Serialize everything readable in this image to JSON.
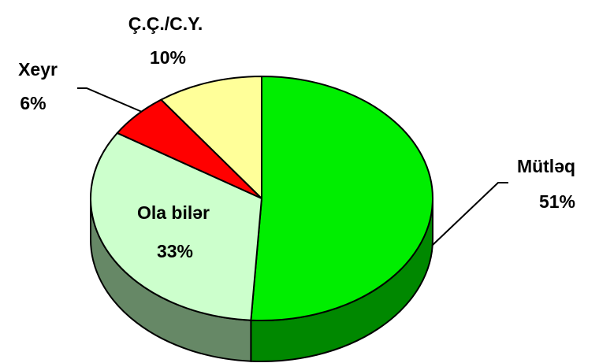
{
  "chart_data": {
    "type": "pie",
    "categories": [
      "Mütləq",
      "Ola bilər",
      "Xeyr",
      "Ç.Ç./C.Y."
    ],
    "values": [
      51,
      33,
      6,
      10
    ],
    "value_labels": [
      "51%",
      "33%",
      "6%",
      "10%"
    ],
    "colors": [
      "#00ee00",
      "#ccffcc",
      "#ff0000",
      "#ffff99"
    ],
    "side_colors": [
      "#008800",
      "#668866",
      "#990000",
      "#999966"
    ]
  }
}
